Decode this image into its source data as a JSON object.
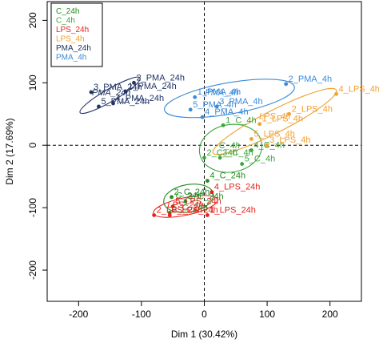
{
  "chart_data": {
    "type": "scatter",
    "title": "",
    "xlabel": "Dim 1 (30.42%)",
    "ylabel": "Dim 2 (17.69%)",
    "xlim": [
      -250,
      250
    ],
    "ylim": [
      -250,
      230
    ],
    "xticks": [
      -200,
      -100,
      0,
      100,
      200
    ],
    "yticks": [
      -200,
      -100,
      0,
      100,
      200
    ],
    "reference_lines": {
      "x": 0,
      "y": 0,
      "style": "dashed"
    },
    "grid": false,
    "legend_position": "top-left",
    "legend": [
      {
        "label": "C_24h",
        "color": "#228B22"
      },
      {
        "label": "C_4h",
        "color": "#3CA63C"
      },
      {
        "label": "LPS_24h",
        "color": "#E8211A"
      },
      {
        "label": "LPS_4h",
        "color": "#F2A030"
      },
      {
        "label": "PMA_24h",
        "color": "#223366"
      },
      {
        "label": "PMA_4h",
        "color": "#3A8BD8"
      }
    ],
    "series": [
      {
        "name": "C_24h",
        "color": "#228B22",
        "points": [
          {
            "label": "2_C_24h",
            "x": -52,
            "y": -83
          },
          {
            "label": "4_C_24h",
            "x": 5,
            "y": -57
          },
          {
            "label": "5_C_24h",
            "x": -55,
            "y": -108
          },
          {
            "label": "3_C_24h",
            "x": -30,
            "y": -90
          }
        ],
        "centroid_label": "C_24h",
        "centroid": {
          "x": -25,
          "y": -85
        },
        "ellipse": {
          "cx": -25,
          "cy": -85,
          "rx": 40,
          "ry": 22,
          "angle": -10
        }
      },
      {
        "name": "C_4h",
        "color": "#3CA63C",
        "points": [
          {
            "label": "1_C_4h",
            "x": 30,
            "y": 32
          },
          {
            "label": "2_C_4h",
            "x": 0,
            "y": -20
          },
          {
            "label": "3_C_4h",
            "x": 25,
            "y": -20
          },
          {
            "label": "4_C_4h",
            "x": 75,
            "y": -8
          },
          {
            "label": "5_C_4h",
            "x": 60,
            "y": -30
          }
        ],
        "centroid_label": "C_4h",
        "centroid": {
          "x": 40,
          "y": -5
        },
        "ellipse": {
          "cx": 42,
          "cy": -5,
          "rx": 50,
          "ry": 38,
          "angle": -10
        }
      },
      {
        "name": "LPS_24h",
        "color": "#E8211A",
        "points": [
          {
            "label": "5_LPS_24h",
            "x": -50,
            "y": -98
          },
          {
            "label": "4_LPS_24h",
            "x": 12,
            "y": -75
          },
          {
            "label": "1_LPS_24h",
            "x": 5,
            "y": -112
          },
          {
            "label": "2_LPS_24h",
            "x": -80,
            "y": -112
          },
          {
            "label": "3_LPS_24h",
            "x": -55,
            "y": -112
          }
        ],
        "centroid_label": "LPS_24h",
        "centroid": {
          "x": -30,
          "y": -100
        },
        "ellipse": {
          "cx": -30,
          "cy": -98,
          "rx": 52,
          "ry": 14,
          "angle": -12
        }
      },
      {
        "name": "LPS_4h",
        "color": "#F2A030",
        "points": [
          {
            "label": "4_LPS_4h",
            "x": 210,
            "y": 82
          },
          {
            "label": "2_LPS_4h",
            "x": 135,
            "y": 50
          },
          {
            "label": "1_LPS_4h",
            "x": 88,
            "y": 34
          },
          {
            "label": "5_LPS_4h",
            "x": 75,
            "y": 10
          },
          {
            "label": "3_LPS_4h",
            "x": 100,
            "y": 0
          }
        ],
        "centroid_label": "LPS_4h",
        "centroid": {
          "x": 112,
          "y": 42
        },
        "ellipse": {
          "cx": 112,
          "cy": 38,
          "rx": 110,
          "ry": 18,
          "angle": -27
        }
      },
      {
        "name": "PMA_24h",
        "color": "#223366",
        "points": [
          {
            "label": "2_PMA_24h",
            "x": -112,
            "y": 100
          },
          {
            "label": "1_PMA_24h",
            "x": -125,
            "y": 86
          },
          {
            "label": "4_PMA_24h",
            "x": -145,
            "y": 67
          },
          {
            "label": "5_PMA_24h",
            "x": -168,
            "y": 62
          },
          {
            "label": "3_PMA_24h",
            "x": -180,
            "y": 85
          }
        ],
        "centroid_label": "PMA_24h",
        "centroid": {
          "x": -148,
          "y": 80
        },
        "ellipse": {
          "cx": -150,
          "cy": 80,
          "rx": 55,
          "ry": 10,
          "angle": -30
        }
      },
      {
        "name": "PMA_4h",
        "color": "#3A8BD8",
        "points": [
          {
            "label": "2_PMA_4h",
            "x": 130,
            "y": 98
          },
          {
            "label": "1_PMA_4h",
            "x": -15,
            "y": 77
          },
          {
            "label": "5_PMA_4h",
            "x": -22,
            "y": 57
          },
          {
            "label": "4_PMA_4h",
            "x": -3,
            "y": 45
          },
          {
            "label": "3_PMA_4h",
            "x": 20,
            "y": 62
          }
        ],
        "centroid_label": "PMA_4h",
        "centroid": {
          "x": 28,
          "y": 80
        },
        "ellipse": {
          "cx": 40,
          "cy": 75,
          "rx": 105,
          "ry": 25,
          "angle": -10
        }
      }
    ]
  }
}
